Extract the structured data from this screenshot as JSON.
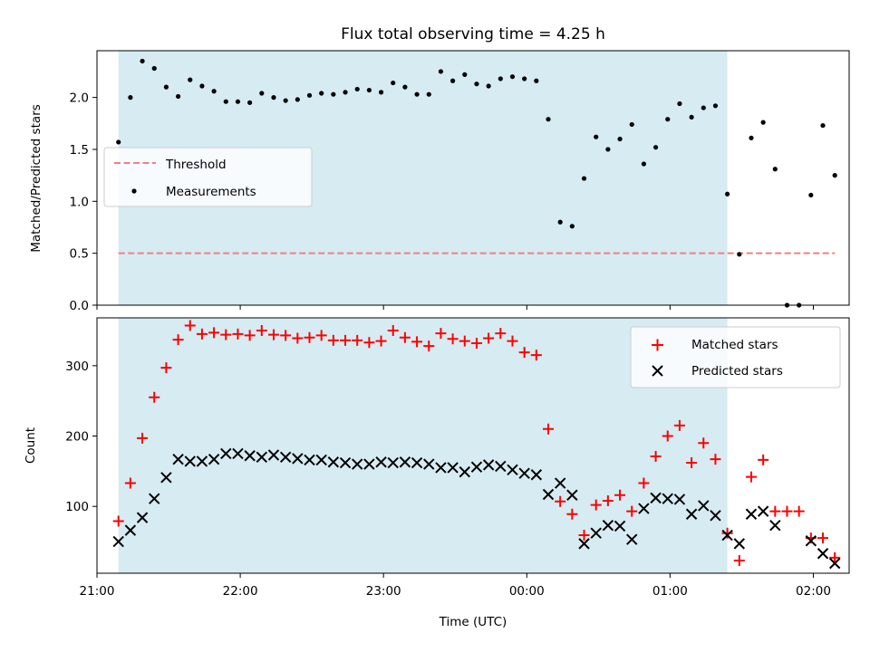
{
  "chart_data": [
    {
      "type": "scatter",
      "title": "Flux total observing time = 4.25 h",
      "ylabel": "Matched/Predicted stars",
      "xlabel": "",
      "ylim": [
        0.0,
        2.45
      ],
      "xlim": [
        "21:00",
        "02:15"
      ],
      "yticks": [
        0.0,
        0.5,
        1.0,
        1.5,
        2.0
      ],
      "yticklabels": [
        "0.0",
        "0.5",
        "1.0",
        "1.5",
        "2.0"
      ],
      "grid": false,
      "legend_position": "center-left",
      "shaded_span": {
        "start": "21:09",
        "end": "01:24",
        "color": "#add8e6"
      },
      "series": [
        {
          "name": "Threshold",
          "kind": "line",
          "style": "dashed",
          "color": "#f08080",
          "x": [
            "21:09",
            "02:09"
          ],
          "y": [
            0.5,
            0.5
          ]
        },
        {
          "name": "Measurements",
          "kind": "scatter",
          "marker": "dot",
          "color": "#000000",
          "x": [
            "21:09",
            "21:14",
            "21:19",
            "21:24",
            "21:29",
            "21:34",
            "21:39",
            "21:44",
            "21:49",
            "21:54",
            "21:59",
            "22:04",
            "22:09",
            "22:14",
            "22:19",
            "22:24",
            "22:29",
            "22:34",
            "22:39",
            "22:44",
            "22:49",
            "22:54",
            "22:59",
            "23:04",
            "23:09",
            "23:14",
            "23:19",
            "23:24",
            "23:29",
            "23:34",
            "23:39",
            "23:44",
            "23:49",
            "23:54",
            "23:59",
            "00:04",
            "00:09",
            "00:14",
            "00:19",
            "00:24",
            "00:29",
            "00:34",
            "00:39",
            "00:44",
            "00:49",
            "00:54",
            "00:59",
            "01:04",
            "01:09",
            "01:14",
            "01:19",
            "01:24",
            "01:29",
            "01:34",
            "01:39",
            "01:44",
            "01:49",
            "01:54",
            "01:59",
            "02:04",
            "02:09"
          ],
          "y": [
            1.57,
            2.0,
            2.35,
            2.28,
            2.1,
            2.01,
            2.17,
            2.11,
            2.06,
            1.96,
            1.96,
            1.95,
            2.04,
            2.0,
            1.97,
            1.98,
            2.02,
            2.04,
            2.03,
            2.05,
            2.08,
            2.07,
            2.05,
            2.14,
            2.1,
            2.03,
            2.03,
            2.25,
            2.16,
            2.22,
            2.13,
            2.11,
            2.18,
            2.2,
            2.18,
            2.16,
            1.79,
            0.8,
            0.76,
            1.22,
            1.62,
            1.5,
            1.6,
            1.74,
            1.36,
            1.52,
            1.79,
            1.94,
            1.81,
            1.9,
            1.92,
            1.07,
            0.49,
            1.61,
            1.76,
            1.31,
            0.0,
            0.0,
            1.06,
            1.73,
            1.25
          ]
        }
      ]
    },
    {
      "type": "scatter",
      "title": "",
      "ylabel": "Count",
      "xlabel": "Time (UTC)",
      "ylim": [
        5,
        368
      ],
      "xlim": [
        "21:00",
        "02:15"
      ],
      "yticks": [
        100,
        200,
        300
      ],
      "yticklabels": [
        "100",
        "200",
        "300"
      ],
      "xticklabels": [
        "21:00",
        "22:00",
        "23:00",
        "00:00",
        "01:00",
        "02:00"
      ],
      "grid": false,
      "legend_position": "top-right",
      "shaded_span": {
        "start": "21:09",
        "end": "01:24",
        "color": "#add8e6"
      },
      "series": [
        {
          "name": "Matched stars",
          "kind": "scatter",
          "marker": "plus",
          "color": "#ff0000",
          "x": [
            "21:09",
            "21:14",
            "21:19",
            "21:24",
            "21:29",
            "21:34",
            "21:39",
            "21:44",
            "21:49",
            "21:54",
            "21:59",
            "22:04",
            "22:09",
            "22:14",
            "22:19",
            "22:24",
            "22:29",
            "22:34",
            "22:39",
            "22:44",
            "22:49",
            "22:54",
            "22:59",
            "23:04",
            "23:09",
            "23:14",
            "23:19",
            "23:24",
            "23:29",
            "23:34",
            "23:39",
            "23:44",
            "23:49",
            "23:54",
            "23:59",
            "00:04",
            "00:09",
            "00:14",
            "00:19",
            "00:24",
            "00:29",
            "00:34",
            "00:39",
            "00:44",
            "00:49",
            "00:54",
            "00:59",
            "01:04",
            "01:09",
            "01:14",
            "01:19",
            "01:24",
            "01:29",
            "01:34",
            "01:39",
            "01:44",
            "01:49",
            "01:54",
            "01:59",
            "02:04",
            "02:09"
          ],
          "y": [
            79,
            133,
            197,
            255,
            297,
            337,
            357,
            345,
            347,
            344,
            345,
            343,
            350,
            344,
            343,
            339,
            340,
            343,
            336,
            336,
            336,
            333,
            335,
            350,
            340,
            334,
            328,
            346,
            338,
            335,
            332,
            339,
            346,
            335,
            319,
            315,
            210,
            107,
            89,
            59,
            102,
            108,
            116,
            93,
            133,
            171,
            200,
            215,
            162,
            190,
            167,
            62,
            23,
            142,
            166,
            93,
            93,
            93,
            55,
            55,
            27
          ]
        },
        {
          "name": "Predicted stars",
          "kind": "scatter",
          "marker": "x",
          "color": "#000000",
          "x": [
            "21:09",
            "21:14",
            "21:19",
            "21:24",
            "21:29",
            "21:34",
            "21:39",
            "21:44",
            "21:49",
            "21:54",
            "21:59",
            "22:04",
            "22:09",
            "22:14",
            "22:19",
            "22:24",
            "22:29",
            "22:34",
            "22:39",
            "22:44",
            "22:49",
            "22:54",
            "22:59",
            "23:04",
            "23:09",
            "23:14",
            "23:19",
            "23:24",
            "23:29",
            "23:34",
            "23:39",
            "23:44",
            "23:49",
            "23:54",
            "23:59",
            "00:04",
            "00:09",
            "00:14",
            "00:19",
            "00:24",
            "00:29",
            "00:34",
            "00:39",
            "00:44",
            "00:49",
            "00:54",
            "00:59",
            "01:04",
            "01:09",
            "01:14",
            "01:19",
            "01:24",
            "01:29",
            "01:34",
            "01:39",
            "01:44",
            "01:49",
            "01:54",
            "01:59",
            "02:04",
            "02:09"
          ],
          "y": [
            50,
            66,
            84,
            111,
            141,
            167,
            164,
            164,
            167,
            175,
            175,
            172,
            170,
            173,
            170,
            168,
            166,
            166,
            163,
            162,
            160,
            160,
            163,
            162,
            163,
            162,
            160,
            155,
            155,
            149,
            156,
            159,
            157,
            152,
            147,
            145,
            117,
            133,
            116,
            47,
            62,
            73,
            72,
            53,
            97,
            112,
            111,
            110,
            89,
            101,
            87,
            59,
            47,
            89,
            93,
            73,
            null,
            null,
            51,
            33,
            19
          ]
        }
      ]
    }
  ]
}
